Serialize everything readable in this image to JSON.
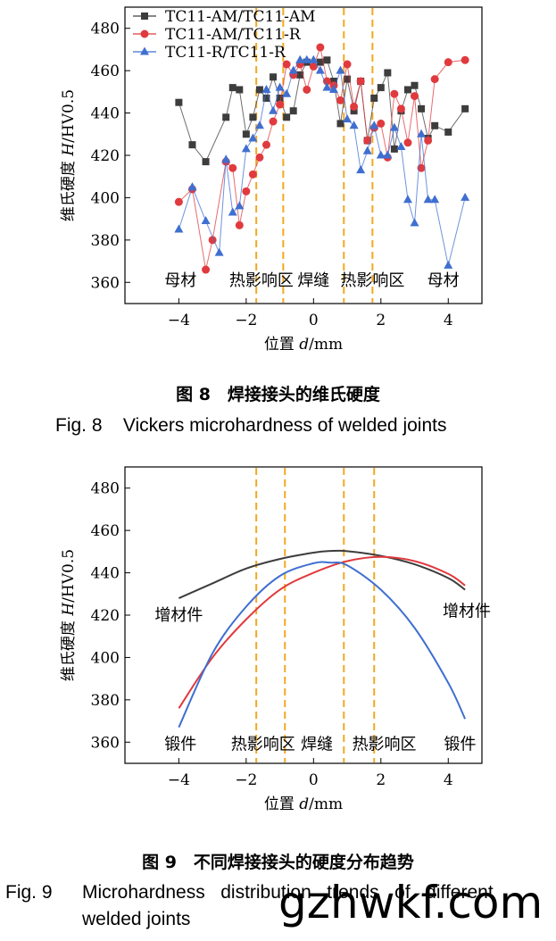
{
  "fig8": {
    "caption_cn": "图 8　焊接接头的维氏硬度",
    "caption_en": "Fig. 8    Vickers microhardness of welded joints",
    "chart_data": {
      "type": "line",
      "title": "",
      "ylabel_cn": "维氏硬度 ",
      "ylabel_var": "H",
      "ylabel_unit": "/HV0.5",
      "xlabel_cn": "位置 ",
      "xlabel_var": "d",
      "xlabel_unit": "/mm",
      "xlim": [
        -5.6,
        5
      ],
      "ylim": [
        350,
        490
      ],
      "xticks": [
        -4,
        -2,
        0,
        2,
        4
      ],
      "xtick_labels": [
        "−4",
        "−2",
        "0",
        "2",
        "4"
      ],
      "yticks": [
        360,
        380,
        400,
        420,
        440,
        460,
        480
      ],
      "ytick_labels": [
        "360",
        "380",
        "400",
        "420",
        "440",
        "460",
        "480"
      ],
      "region_lines": [
        -1.7,
        -0.9,
        0.9,
        1.75
      ],
      "region_labels": [
        {
          "text": "母材",
          "x": -3.95
        },
        {
          "text": "热影响区",
          "x": -1.55
        },
        {
          "text": "焊缝",
          "x": 0.0
        },
        {
          "text": "热影响区",
          "x": 1.75
        },
        {
          "text": "母材",
          "x": 3.85
        }
      ],
      "legend_position": "top-left",
      "series": [
        {
          "name": "TC11-AM/TC11-AM",
          "color": "#3d3d3d",
          "marker": "square",
          "x": [
            -4,
            -3.6,
            -3.2,
            -2.6,
            -2.4,
            -2.2,
            -2.0,
            -1.8,
            -1.6,
            -1.4,
            -1.2,
            -1.0,
            -0.8,
            -0.6,
            -0.4,
            -0.2,
            0.2,
            0.4,
            0.6,
            0.8,
            1.0,
            1.2,
            1.4,
            1.6,
            1.8,
            2.0,
            2.2,
            2.4,
            2.6,
            2.8,
            3.0,
            3.2,
            3.4,
            3.6,
            4.0,
            4.5
          ],
          "y": [
            445,
            425,
            417,
            438,
            452,
            451,
            430,
            438,
            451,
            447,
            457,
            447,
            438,
            441,
            458,
            464,
            464,
            465,
            455,
            435,
            456,
            441,
            455,
            427,
            447,
            452,
            459,
            423,
            441,
            451,
            453,
            442,
            428,
            434,
            431,
            442
          ]
        },
        {
          "name": "TC11-AM/TC11-R",
          "color": "#e03a3e",
          "marker": "circle",
          "x": [
            -4,
            -3.6,
            -3.2,
            -3.0,
            -2.6,
            -2.4,
            -2.2,
            -2.0,
            -1.8,
            -1.6,
            -1.4,
            -1.2,
            -1.0,
            -0.8,
            -0.6,
            -0.4,
            -0.2,
            0.0,
            0.2,
            0.4,
            0.6,
            0.8,
            1.0,
            1.2,
            1.4,
            1.6,
            1.8,
            2.0,
            2.2,
            2.4,
            2.6,
            2.8,
            3.0,
            3.2,
            3.4,
            3.6,
            4.0,
            4.5
          ],
          "y": [
            398,
            404,
            366,
            380,
            417,
            414,
            387,
            403,
            411,
            419,
            425,
            436,
            444,
            463,
            458,
            463,
            451,
            462,
            471,
            455,
            453,
            446,
            463,
            443,
            455,
            427,
            433,
            435,
            419,
            449,
            442,
            426,
            448,
            414,
            427,
            456,
            464,
            465
          ]
        },
        {
          "name": "TC11-R/TC11-R",
          "color": "#3f6fd0",
          "marker": "triangle",
          "x": [
            -4,
            -3.6,
            -3.2,
            -2.8,
            -2.6,
            -2.4,
            -2.2,
            -2.0,
            -1.8,
            -1.6,
            -1.4,
            -1.2,
            -1.0,
            -0.8,
            -0.6,
            -0.4,
            -0.2,
            0.0,
            0.2,
            0.4,
            0.6,
            0.8,
            1.0,
            1.2,
            1.4,
            1.6,
            1.8,
            2.0,
            2.2,
            2.4,
            2.6,
            2.8,
            3.0,
            3.2,
            3.4,
            3.6,
            4.0,
            4.5
          ],
          "y": [
            385,
            405,
            389,
            374,
            418,
            393,
            396,
            423,
            428,
            434,
            451,
            441,
            452,
            449,
            460,
            465,
            465,
            465,
            460,
            452,
            451,
            460,
            437,
            434,
            413,
            422,
            434,
            420,
            420,
            433,
            424,
            399,
            388,
            430,
            399,
            399,
            368,
            400
          ]
        }
      ]
    }
  },
  "fig9": {
    "caption_cn": "图 9　不同焊接接头的硬度分布趋势",
    "caption_en_prefix": "Fig. 9",
    "caption_en_line1": "Microhardness   distribution   trends   of   different",
    "caption_en_line2": "welded joints",
    "chart_data": {
      "type": "line",
      "title": "",
      "ylabel_cn": "维氏硬度 ",
      "ylabel_var": "H",
      "ylabel_unit": "/HV0.5",
      "xlabel_cn": "位置 ",
      "xlabel_var": "d",
      "xlabel_unit": "/mm",
      "xlim": [
        -5.6,
        5
      ],
      "ylim": [
        350,
        490
      ],
      "xticks": [
        -4,
        -2,
        0,
        2,
        4
      ],
      "xtick_labels": [
        "−4",
        "−2",
        "0",
        "2",
        "4"
      ],
      "yticks": [
        360,
        380,
        400,
        420,
        440,
        460,
        480
      ],
      "ytick_labels": [
        "360",
        "380",
        "400",
        "420",
        "440",
        "460",
        "480"
      ],
      "region_lines": [
        -1.7,
        -0.85,
        0.9,
        1.8
      ],
      "region_labels": [
        {
          "text": "锻件",
          "x": -3.95,
          "y": 359
        },
        {
          "text": "热影响区",
          "x": -1.5,
          "y": 359
        },
        {
          "text": "焊缝",
          "x": 0.1,
          "y": 359
        },
        {
          "text": "热影响区",
          "x": 2.1,
          "y": 359
        },
        {
          "text": "锻件",
          "x": 4.35,
          "y": 359
        },
        {
          "text": "增材件",
          "x": -4.0,
          "y": 420
        },
        {
          "text": "增材件",
          "x": 4.55,
          "y": 422
        }
      ],
      "series": [
        {
          "color": "#3d3d3d",
          "x": [
            -4,
            -3,
            -2,
            -1,
            0,
            0.5,
            1,
            2,
            3,
            4,
            4.5
          ],
          "y": [
            428,
            435,
            442,
            446.5,
            449.5,
            450.3,
            450.2,
            448,
            444,
            437.5,
            432
          ]
        },
        {
          "color": "#e03a3e",
          "x": [
            -4,
            -3,
            -2,
            -1,
            0,
            1,
            2,
            3,
            4,
            4.5
          ],
          "y": [
            376,
            400,
            418,
            432,
            440,
            445.5,
            447.5,
            445.5,
            439.5,
            434
          ]
        },
        {
          "color": "#3f6fd0",
          "x": [
            -4,
            -3,
            -2,
            -1,
            0,
            0.5,
            1,
            2,
            3,
            4,
            4.5
          ],
          "y": [
            367,
            402,
            424,
            438.5,
            444.5,
            444.8,
            443.5,
            432,
            414,
            388,
            371
          ]
        }
      ]
    }
  },
  "watermark": "gzhwkf.com"
}
